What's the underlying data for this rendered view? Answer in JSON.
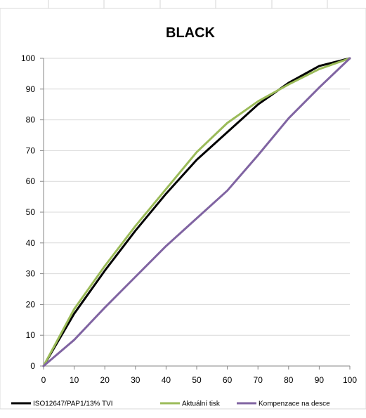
{
  "chart_data": {
    "type": "line",
    "title": "BLACK",
    "xlabel": "",
    "ylabel": "",
    "xlim": [
      0,
      100
    ],
    "ylim": [
      0,
      100
    ],
    "xticks": [
      0,
      10,
      20,
      30,
      40,
      50,
      60,
      70,
      80,
      90,
      100
    ],
    "yticks": [
      0,
      10,
      20,
      30,
      40,
      50,
      60,
      70,
      80,
      90,
      100
    ],
    "grid": "horizontal",
    "legend": "bottom",
    "x": [
      0,
      10,
      20,
      30,
      40,
      50,
      60,
      70,
      80,
      90,
      100
    ],
    "series": [
      {
        "name": "ISO12647/PAP1/13% TVI",
        "color": "#000000",
        "values": [
          0,
          17,
          31,
          44,
          56,
          67,
          76,
          85,
          92,
          97.5,
          100
        ]
      },
      {
        "name": "Aktuální tisk",
        "color": "#9bbb59",
        "values": [
          0,
          18.5,
          32.5,
          45.5,
          57.5,
          69.5,
          79,
          86,
          91.5,
          96.5,
          100
        ]
      },
      {
        "name": "Kompenzace na desce",
        "color": "#8064a2",
        "values": [
          0,
          8.5,
          19,
          29,
          39,
          48,
          57,
          68.5,
          80.5,
          90.5,
          100
        ]
      }
    ]
  }
}
